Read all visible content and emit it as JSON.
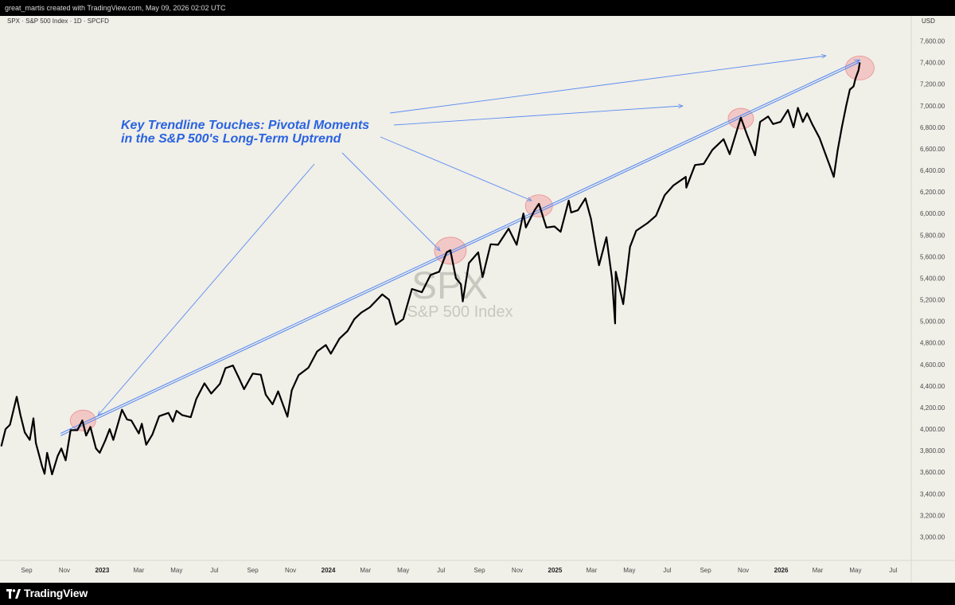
{
  "header": {
    "attribution": "great_martis created with TradingView.com, May 09, 2026 02:02 UTC"
  },
  "chart_header": {
    "symbol_line": "SPX · S&P 500 Index · 1D · SPCFD",
    "currency": "USD"
  },
  "watermark": {
    "symbol": "SPX",
    "description": "S&P 500 Index"
  },
  "annotation": {
    "line1": "Key Trendline Touches: Pivotal Moments",
    "line2": "in the S&P 500's Long-Term Uptrend"
  },
  "footer": {
    "brand": "TradingView"
  },
  "colors": {
    "background": "#f0efe8",
    "price_line": "#000000",
    "trendline": "#5b8cf0",
    "annotation_text": "#2a63e0",
    "touch_circle": "#f2a7a7"
  },
  "chart_data": {
    "type": "line",
    "title": "SPX · S&P 500 Index · 1D · SPCFD",
    "ylabel": "USD",
    "ylim": [
      2900,
      7700
    ],
    "y_ticks": [
      3000,
      3200,
      3400,
      3600,
      3800,
      4000,
      4200,
      4400,
      4600,
      4800,
      5000,
      5200,
      5400,
      5600,
      5800,
      6000,
      6200,
      6400,
      6600,
      6800,
      7000,
      7200,
      7400,
      7600
    ],
    "y_tick_labels": [
      "3,000.00",
      "3,200.00",
      "3,400.00",
      "3,600.00",
      "3,800.00",
      "4,000.00",
      "4,200.00",
      "4,400.00",
      "4,600.00",
      "4,800.00",
      "5,000.00",
      "5,200.00",
      "5,400.00",
      "5,600.00",
      "5,800.00",
      "6,000.00",
      "6,200.00",
      "6,400.00",
      "6,600.00",
      "6,800.00",
      "7,000.00",
      "7,200.00",
      "7,400.00",
      "7,600.00"
    ],
    "x_range": [
      "2022-07-20",
      "2026-07-30"
    ],
    "x_ticks": [
      {
        "date": "2022-09-01",
        "label": "Sep",
        "bold": false
      },
      {
        "date": "2022-11-01",
        "label": "Nov",
        "bold": false
      },
      {
        "date": "2023-01-01",
        "label": "2023",
        "bold": true
      },
      {
        "date": "2023-03-01",
        "label": "Mar",
        "bold": false
      },
      {
        "date": "2023-05-01",
        "label": "May",
        "bold": false
      },
      {
        "date": "2023-07-01",
        "label": "Jul",
        "bold": false
      },
      {
        "date": "2023-09-01",
        "label": "Sep",
        "bold": false
      },
      {
        "date": "2023-11-01",
        "label": "Nov",
        "bold": false
      },
      {
        "date": "2024-01-01",
        "label": "2024",
        "bold": true
      },
      {
        "date": "2024-03-01",
        "label": "Mar",
        "bold": false
      },
      {
        "date": "2024-05-01",
        "label": "May",
        "bold": false
      },
      {
        "date": "2024-07-01",
        "label": "Jul",
        "bold": false
      },
      {
        "date": "2024-09-01",
        "label": "Sep",
        "bold": false
      },
      {
        "date": "2024-11-01",
        "label": "Nov",
        "bold": false
      },
      {
        "date": "2025-01-01",
        "label": "2025",
        "bold": true
      },
      {
        "date": "2025-03-01",
        "label": "Mar",
        "bold": false
      },
      {
        "date": "2025-05-01",
        "label": "May",
        "bold": false
      },
      {
        "date": "2025-07-01",
        "label": "Jul",
        "bold": false
      },
      {
        "date": "2025-09-01",
        "label": "Sep",
        "bold": false
      },
      {
        "date": "2025-11-01",
        "label": "Nov",
        "bold": false
      },
      {
        "date": "2026-01-01",
        "label": "2026",
        "bold": true
      },
      {
        "date": "2026-03-01",
        "label": "Mar",
        "bold": false
      },
      {
        "date": "2026-05-01",
        "label": "May",
        "bold": false
      },
      {
        "date": "2026-07-01",
        "label": "Jul",
        "bold": false
      }
    ],
    "series": [
      {
        "points": [
          [
            "2022-07-22",
            3840
          ],
          [
            "2022-07-29",
            4000
          ],
          [
            "2022-08-05",
            4040
          ],
          [
            "2022-08-16",
            4300
          ],
          [
            "2022-08-22",
            4130
          ],
          [
            "2022-08-29",
            3970
          ],
          [
            "2022-09-06",
            3900
          ],
          [
            "2022-09-12",
            4100
          ],
          [
            "2022-09-16",
            3870
          ],
          [
            "2022-09-26",
            3655
          ],
          [
            "2022-09-30",
            3585
          ],
          [
            "2022-10-04",
            3780
          ],
          [
            "2022-10-12",
            3580
          ],
          [
            "2022-10-21",
            3750
          ],
          [
            "2022-10-27",
            3820
          ],
          [
            "2022-11-03",
            3710
          ],
          [
            "2022-11-11",
            3990
          ],
          [
            "2022-11-22",
            3990
          ],
          [
            "2022-11-30",
            4080
          ],
          [
            "2022-12-06",
            3940
          ],
          [
            "2022-12-13",
            4020
          ],
          [
            "2022-12-22",
            3820
          ],
          [
            "2022-12-28",
            3780
          ],
          [
            "2023-01-06",
            3895
          ],
          [
            "2023-01-13",
            4000
          ],
          [
            "2023-01-19",
            3900
          ],
          [
            "2023-02-02",
            4180
          ],
          [
            "2023-02-10",
            4090
          ],
          [
            "2023-02-17",
            4080
          ],
          [
            "2023-03-01",
            3960
          ],
          [
            "2023-03-06",
            4050
          ],
          [
            "2023-03-13",
            3855
          ],
          [
            "2023-03-23",
            3950
          ],
          [
            "2023-04-03",
            4120
          ],
          [
            "2023-04-18",
            4150
          ],
          [
            "2023-04-25",
            4070
          ],
          [
            "2023-05-01",
            4170
          ],
          [
            "2023-05-10",
            4130
          ],
          [
            "2023-05-24",
            4110
          ],
          [
            "2023-06-02",
            4280
          ],
          [
            "2023-06-15",
            4425
          ],
          [
            "2023-06-26",
            4330
          ],
          [
            "2023-07-10",
            4420
          ],
          [
            "2023-07-19",
            4565
          ],
          [
            "2023-07-31",
            4590
          ],
          [
            "2023-08-10",
            4470
          ],
          [
            "2023-08-18",
            4370
          ],
          [
            "2023-09-01",
            4515
          ],
          [
            "2023-09-14",
            4505
          ],
          [
            "2023-09-22",
            4320
          ],
          [
            "2023-10-03",
            4230
          ],
          [
            "2023-10-12",
            4350
          ],
          [
            "2023-10-20",
            4225
          ],
          [
            "2023-10-27",
            4115
          ],
          [
            "2023-11-03",
            4360
          ],
          [
            "2023-11-14",
            4500
          ],
          [
            "2023-11-30",
            4570
          ],
          [
            "2023-12-14",
            4720
          ],
          [
            "2023-12-28",
            4780
          ],
          [
            "2024-01-05",
            4700
          ],
          [
            "2024-01-19",
            4840
          ],
          [
            "2024-02-01",
            4910
          ],
          [
            "2024-02-12",
            5020
          ],
          [
            "2024-02-23",
            5080
          ],
          [
            "2024-03-08",
            5130
          ],
          [
            "2024-03-28",
            5250
          ],
          [
            "2024-04-08",
            5200
          ],
          [
            "2024-04-19",
            4970
          ],
          [
            "2024-05-01",
            5020
          ],
          [
            "2024-05-15",
            5300
          ],
          [
            "2024-05-31",
            5270
          ],
          [
            "2024-06-14",
            5430
          ],
          [
            "2024-06-28",
            5460
          ],
          [
            "2024-07-10",
            5640
          ],
          [
            "2024-07-16",
            5660
          ],
          [
            "2024-07-25",
            5400
          ],
          [
            "2024-08-02",
            5345
          ],
          [
            "2024-08-05",
            5185
          ],
          [
            "2024-08-15",
            5540
          ],
          [
            "2024-08-30",
            5640
          ],
          [
            "2024-09-06",
            5410
          ],
          [
            "2024-09-19",
            5715
          ],
          [
            "2024-10-01",
            5710
          ],
          [
            "2024-10-18",
            5860
          ],
          [
            "2024-10-31",
            5710
          ],
          [
            "2024-11-11",
            6000
          ],
          [
            "2024-11-15",
            5870
          ],
          [
            "2024-11-29",
            6030
          ],
          [
            "2024-12-06",
            6090
          ],
          [
            "2024-12-18",
            5870
          ],
          [
            "2024-12-31",
            5880
          ],
          [
            "2025-01-10",
            5830
          ],
          [
            "2025-01-23",
            6120
          ],
          [
            "2025-01-27",
            6010
          ],
          [
            "2025-02-07",
            6030
          ],
          [
            "2025-02-19",
            6140
          ],
          [
            "2025-02-28",
            5950
          ],
          [
            "2025-03-10",
            5610
          ],
          [
            "2025-03-13",
            5520
          ],
          [
            "2025-03-25",
            5780
          ],
          [
            "2025-04-03",
            5400
          ],
          [
            "2025-04-08",
            4980
          ],
          [
            "2025-04-09",
            5460
          ],
          [
            "2025-04-21",
            5160
          ],
          [
            "2025-05-02",
            5690
          ],
          [
            "2025-05-12",
            5840
          ],
          [
            "2025-05-30",
            5910
          ],
          [
            "2025-06-13",
            5980
          ],
          [
            "2025-06-27",
            6170
          ],
          [
            "2025-07-11",
            6260
          ],
          [
            "2025-07-31",
            6340
          ],
          [
            "2025-08-01",
            6240
          ],
          [
            "2025-08-15",
            6450
          ],
          [
            "2025-08-29",
            6460
          ],
          [
            "2025-09-12",
            6590
          ],
          [
            "2025-09-30",
            6690
          ],
          [
            "2025-10-10",
            6550
          ],
          [
            "2025-10-28",
            6890
          ],
          [
            "2025-11-07",
            6730
          ],
          [
            "2025-11-20",
            6540
          ],
          [
            "2025-11-28",
            6850
          ],
          [
            "2025-12-11",
            6900
          ],
          [
            "2025-12-19",
            6830
          ],
          [
            "2025-12-31",
            6850
          ],
          [
            "2026-01-12",
            6960
          ],
          [
            "2026-01-21",
            6800
          ],
          [
            "2026-01-28",
            6980
          ],
          [
            "2026-02-05",
            6850
          ],
          [
            "2026-02-12",
            6930
          ],
          [
            "2026-02-20",
            6830
          ],
          [
            "2026-03-04",
            6700
          ],
          [
            "2026-03-13",
            6560
          ],
          [
            "2026-03-20",
            6450
          ],
          [
            "2026-03-27",
            6340
          ],
          [
            "2026-04-02",
            6580
          ],
          [
            "2026-04-09",
            6800
          ],
          [
            "2026-04-16",
            7000
          ],
          [
            "2026-04-22",
            7150
          ],
          [
            "2026-04-28",
            7180
          ],
          [
            "2026-05-01",
            7250
          ],
          [
            "2026-05-06",
            7330
          ],
          [
            "2026-05-08",
            7400
          ]
        ]
      }
    ],
    "trendline": {
      "start": [
        "2022-10-26",
        3950
      ],
      "end": [
        "2026-05-08",
        7415
      ]
    },
    "touch_points": [
      [
        "2022-12-01",
        4080
      ],
      [
        "2024-07-16",
        5655
      ],
      [
        "2024-12-06",
        6070
      ],
      [
        "2025-10-28",
        6880
      ],
      [
        "2026-05-08",
        7350
      ]
    ]
  }
}
